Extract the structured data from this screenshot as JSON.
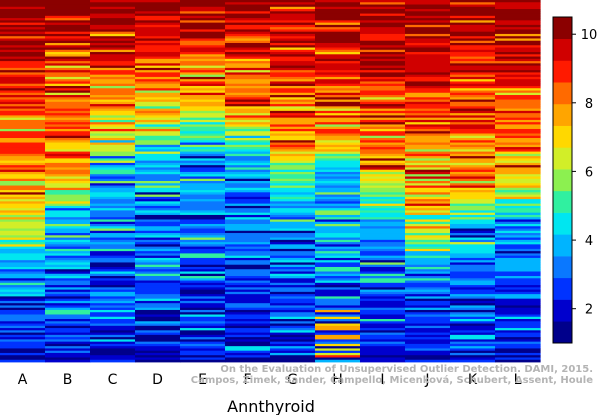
{
  "chart_data": {
    "type": "heatmap",
    "title": "",
    "xlabel": "Annthyroid",
    "ylabel": "",
    "columns": [
      "A",
      "B",
      "C",
      "D",
      "E",
      "F",
      "G",
      "H",
      "I",
      "J",
      "K",
      "L"
    ],
    "colorbar": {
      "ticks": [
        2,
        4,
        6,
        8,
        10
      ],
      "range": [
        1,
        10.5
      ],
      "colors": [
        "#00008B",
        "#0000CD",
        "#0033FF",
        "#0A78FF",
        "#00B4FF",
        "#00E6F0",
        "#30F0A0",
        "#8CF050",
        "#D2EE28",
        "#FFD800",
        "#FFA500",
        "#FF6A00",
        "#FF1A00",
        "#D00000",
        "#8B0000"
      ]
    },
    "column_profiles": [
      {
        "name": "A",
        "red_fraction": 0.55,
        "transition_fraction": 0.72
      },
      {
        "name": "B",
        "red_fraction": 0.45,
        "transition_fraction": 0.62
      },
      {
        "name": "C",
        "red_fraction": 0.32,
        "transition_fraction": 0.5
      },
      {
        "name": "D",
        "red_fraction": 0.28,
        "transition_fraction": 0.44
      },
      {
        "name": "E",
        "red_fraction": 0.24,
        "transition_fraction": 0.4
      },
      {
        "name": "F",
        "red_fraction": 0.3,
        "transition_fraction": 0.44
      },
      {
        "name": "G",
        "red_fraction": 0.4,
        "transition_fraction": 0.56
      },
      {
        "name": "H",
        "red_fraction": 0.38,
        "transition_fraction": 0.48
      },
      {
        "name": "I",
        "red_fraction": 0.45,
        "transition_fraction": 0.6
      },
      {
        "name": "J",
        "red_fraction": 0.55,
        "transition_fraction": 0.74
      },
      {
        "name": "K",
        "red_fraction": 0.5,
        "transition_fraction": 0.64
      },
      {
        "name": "L",
        "red_fraction": 0.48,
        "transition_fraction": 0.6
      }
    ]
  },
  "watermark": {
    "line1": "On the Evaluation of Unsupervised Outlier Detection. DAMI, 2015.",
    "line2": "Campos, Zimek, Sander, Campello, Micenková, Schubert, Assent, Houle"
  }
}
